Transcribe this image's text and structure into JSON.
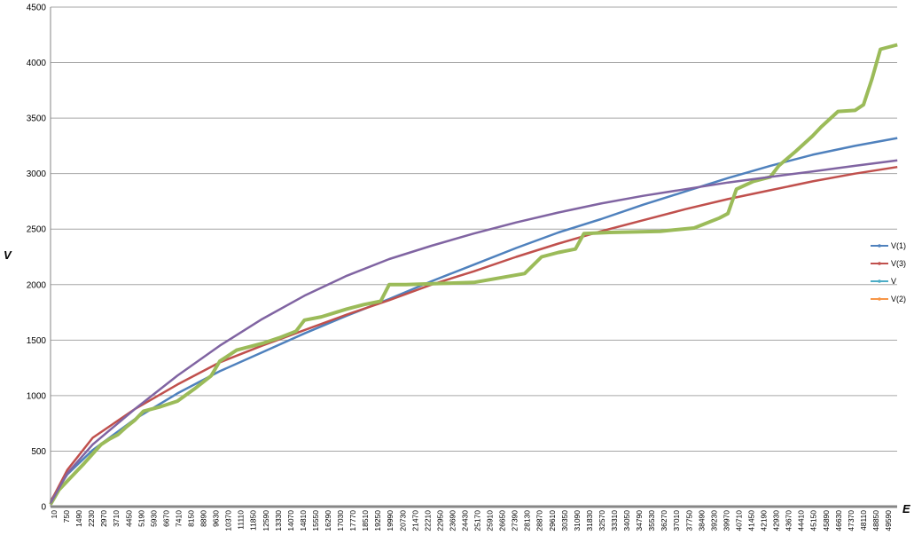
{
  "chart_data": {
    "type": "line",
    "title": "",
    "xlabel": "E",
    "ylabel": "V",
    "xlim": [
      10,
      49990
    ],
    "ylim": [
      0,
      4500
    ],
    "y_ticks": [
      0,
      500,
      1000,
      1500,
      2000,
      2500,
      3000,
      3500,
      4000,
      4500
    ],
    "x_tick_labels": [
      "10",
      "750",
      "1490",
      "2230",
      "2970",
      "3710",
      "4450",
      "5190",
      "5930",
      "6670",
      "7410",
      "8150",
      "8890",
      "9630",
      "10370",
      "11110",
      "11850",
      "12590",
      "13330",
      "14070",
      "14810",
      "15550",
      "16290",
      "17030",
      "17770",
      "18510",
      "19250",
      "19990",
      "20730",
      "21470",
      "22210",
      "22950",
      "23690",
      "24430",
      "25170",
      "25910",
      "26650",
      "27390",
      "28130",
      "28870",
      "29610",
      "30350",
      "31090",
      "31830",
      "32570",
      "33310",
      "34050",
      "34790",
      "35530",
      "36270",
      "37010",
      "37750",
      "38490",
      "39230",
      "39970",
      "40710",
      "41450",
      "42190",
      "42930",
      "43670",
      "44410",
      "45150",
      "45890",
      "46630",
      "47370",
      "48110",
      "48850",
      "49590"
    ],
    "grid": true,
    "legend_position": "right",
    "series": [
      {
        "name": "V(1)",
        "color": "#4f81bd",
        "x": [
          10,
          1000,
          2500,
          5000,
          7500,
          10000,
          12500,
          15000,
          17500,
          20000,
          22500,
          25000,
          27500,
          30000,
          32500,
          35000,
          37500,
          40000,
          42500,
          45000,
          47500,
          50000
        ],
        "y": [
          50,
          290,
          510,
          790,
          1020,
          1220,
          1390,
          1560,
          1720,
          1870,
          2030,
          2180,
          2330,
          2470,
          2590,
          2720,
          2840,
          2960,
          3070,
          3170,
          3250,
          3320
        ]
      },
      {
        "name": "V(3)",
        "color": "#c0504d",
        "x": [
          10,
          1000,
          2500,
          5000,
          7500,
          10000,
          12500,
          15000,
          17500,
          20000,
          22500,
          25000,
          27500,
          30000,
          32500,
          35000,
          37500,
          40000,
          42500,
          45000,
          47500,
          50000
        ],
        "y": [
          40,
          330,
          620,
          880,
          1100,
          1300,
          1450,
          1590,
          1730,
          1860,
          2000,
          2120,
          2250,
          2370,
          2480,
          2580,
          2680,
          2770,
          2850,
          2930,
          3000,
          3060
        ]
      },
      {
        "name": "V",
        "color": "#9bbb59",
        "x": [
          10,
          500,
          1000,
          2000,
          3000,
          3500,
          4000,
          4500,
          5000,
          5500,
          6500,
          7500,
          8500,
          9500,
          10000,
          11000,
          12500,
          13500,
          14500,
          15000,
          16000,
          17500,
          18500,
          19500,
          20000,
          21000,
          23000,
          25000,
          26500,
          28000,
          29000,
          30000,
          31000,
          31500,
          33000,
          36000,
          38000,
          39500,
          40000,
          40500,
          41500,
          42500,
          43000,
          44000,
          45000,
          45500,
          46500,
          47500,
          48000,
          48500,
          49000,
          50000
        ],
        "y": [
          20,
          150,
          230,
          390,
          560,
          610,
          650,
          720,
          780,
          860,
          900,
          950,
          1060,
          1180,
          1310,
          1410,
          1470,
          1520,
          1580,
          1680,
          1710,
          1780,
          1820,
          1850,
          2000,
          2000,
          2010,
          2020,
          2060,
          2100,
          2250,
          2290,
          2320,
          2460,
          2470,
          2480,
          2510,
          2600,
          2640,
          2860,
          2930,
          2970,
          3070,
          3200,
          3340,
          3420,
          3560,
          3570,
          3620,
          3850,
          4120,
          4160
        ]
      },
      {
        "name": "V(2)",
        "color": "#f79646",
        "x": [],
        "y": []
      },
      {
        "name": "",
        "color": "#8064a2",
        "x": [
          10,
          1000,
          2500,
          5000,
          7500,
          10000,
          12500,
          15000,
          17500,
          20000,
          22500,
          25000,
          27500,
          30000,
          32500,
          35000,
          37500,
          40000,
          42500,
          45000,
          47500,
          50000
        ],
        "y": [
          30,
          300,
          560,
          880,
          1180,
          1450,
          1690,
          1900,
          2080,
          2230,
          2350,
          2460,
          2560,
          2650,
          2730,
          2800,
          2860,
          2920,
          2970,
          3020,
          3070,
          3120
        ]
      }
    ],
    "legend": [
      {
        "name": "V(1)",
        "color": "#4f81bd"
      },
      {
        "name": "V(3)",
        "color": "#c0504d"
      },
      {
        "name": "V",
        "color": "#4bacc6"
      },
      {
        "name": "V(2)",
        "color": "#f79646"
      }
    ]
  }
}
